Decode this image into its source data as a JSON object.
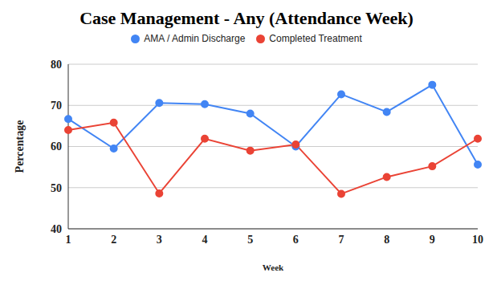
{
  "chart_data": {
    "type": "line",
    "title": "Case Management - Any (Attendance Week)",
    "x_label": "Week",
    "y_label": "Percentage",
    "categories": [
      1,
      2,
      3,
      4,
      5,
      6,
      7,
      8,
      9,
      10
    ],
    "series": [
      {
        "name": "AMA / Admin Discharge",
        "color": "#4285f4",
        "marker": "circle",
        "line_style": "solid",
        "values": [
          66.7,
          59.5,
          70.6,
          70.3,
          68,
          60,
          72.7,
          68.4,
          75,
          55.6
        ]
      },
      {
        "name": "Completed Treatment",
        "color": "#ea4335",
        "marker": "circle",
        "line_style": "solid",
        "values": [
          64,
          65.8,
          48.6,
          61.9,
          59,
          60.5,
          48.5,
          52.6,
          55.2,
          61.9
        ]
      }
    ],
    "ylim": [
      40,
      80
    ],
    "yticks": [
      40,
      50,
      60,
      70,
      80
    ],
    "grid": true,
    "legend": "top"
  }
}
